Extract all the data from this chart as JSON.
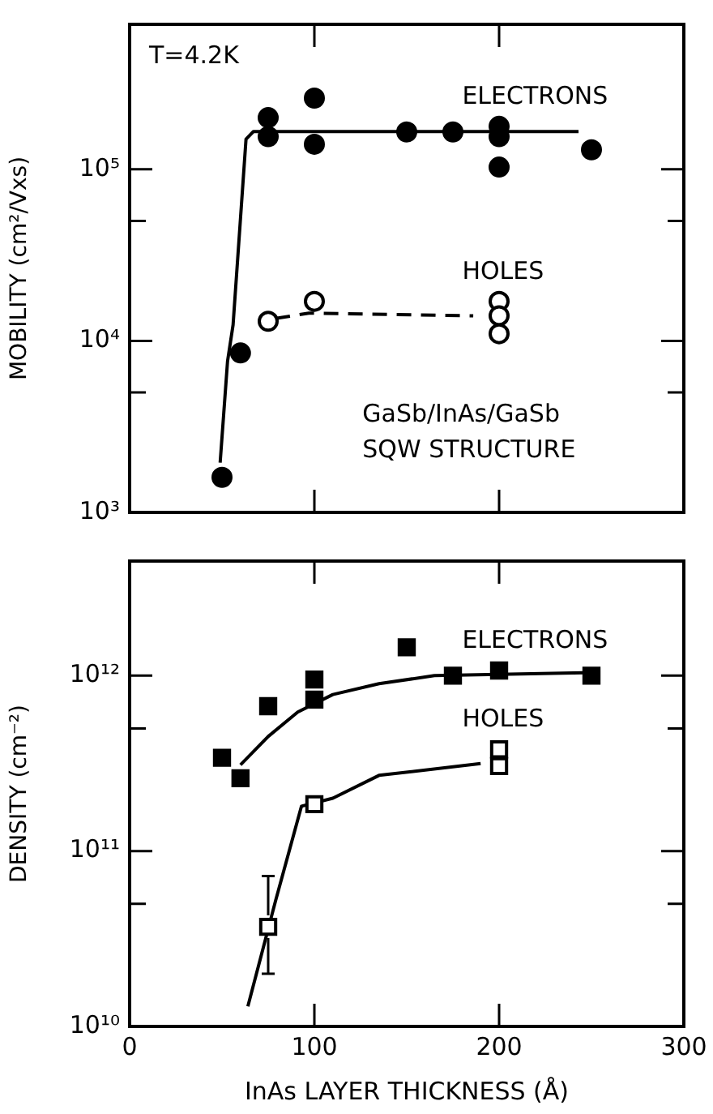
{
  "chart_data": [
    {
      "type": "scatter",
      "ylabel": "MOBILITY (cm²/Vxs)",
      "annotations": [
        "T=4.2K",
        "GaSb/InAs/GaSb",
        "SQW STRUCTURE"
      ],
      "xlim": [
        0,
        300
      ],
      "xticks": [
        0,
        100,
        200,
        300
      ],
      "ylim": [
        1000,
        700000
      ],
      "yticks": [
        {
          "value": 1000,
          "label": "10³"
        },
        {
          "value": 5000,
          "label": null
        },
        {
          "value": 10000,
          "label": "10⁴"
        },
        {
          "value": 50000,
          "label": null
        },
        {
          "value": 100000,
          "label": "10⁵"
        }
      ],
      "log": "y",
      "tick_labels": "y",
      "grid": false,
      "legend": false,
      "series": [
        {
          "name": "ELECTRONS",
          "marker": "circle",
          "color": "#000000",
          "x": [
            50,
            60,
            75,
            75,
            100,
            100,
            150,
            175,
            200,
            200,
            200,
            250
          ],
          "values": [
            1600,
            8500,
            200000,
            155000,
            260000,
            140000,
            165000,
            165000,
            178000,
            155000,
            103000,
            130000
          ]
        },
        {
          "name": "HOLES",
          "marker": "circle",
          "color": "#ffffff",
          "x": [
            75,
            100,
            200,
            200,
            200
          ],
          "values": [
            13000,
            17000,
            17000,
            14000,
            11000
          ]
        },
        {
          "type": "line",
          "marker": "none",
          "line_style": "solid",
          "color": "#000000",
          "x": [
            49,
            53,
            56,
            63,
            67,
            243
          ],
          "values": [
            1950,
            7600,
            12400,
            150000,
            166000,
            166000
          ]
        },
        {
          "type": "line",
          "marker": "none",
          "line_style": "dashed",
          "color": "#000000",
          "x": [
            79,
            97,
            186
          ],
          "values": [
            13500,
            14500,
            14000
          ]
        }
      ]
    },
    {
      "type": "scatter",
      "xlabel": "InAs LAYER THICKNESS (Å)",
      "ylabel": "DENSITY (cm⁻²)",
      "xlim": [
        0,
        300
      ],
      "xticks": [
        0,
        100,
        200,
        300
      ],
      "ylim": [
        10000000000.0,
        4500000000000.0
      ],
      "yticks": [
        {
          "value": 10000000000.0,
          "label": "10¹⁰"
        },
        {
          "value": 50000000000.0,
          "label": null
        },
        {
          "value": 100000000000.0,
          "label": "10¹¹"
        },
        {
          "value": 500000000000.0,
          "label": null
        },
        {
          "value": 1000000000000.0,
          "label": "10¹²"
        }
      ],
      "log": "y",
      "grid": false,
      "legend": false,
      "series": [
        {
          "name": "ELECTRONS",
          "marker": "square",
          "color": "#000000",
          "x": [
            50,
            60,
            75,
            100,
            100,
            150,
            175,
            200,
            250
          ],
          "values": [
            340000000000.0,
            260000000000.0,
            670000000000.0,
            950000000000.0,
            730000000000.0,
            1450000000000.0,
            1000000000000.0,
            1070000000000.0,
            1000000000000.0
          ]
        },
        {
          "name": "HOLES",
          "marker": "square",
          "color": "#ffffff",
          "x": [
            75,
            100,
            200,
            200
          ],
          "values": [
            37000000000.0,
            185000000000.0,
            380000000000.0,
            305000000000.0
          ],
          "errors": [
            [
              20000000000.0,
              72000000000.0
            ],
            null,
            null,
            null
          ]
        },
        {
          "type": "line",
          "marker": "none",
          "line_style": "solid",
          "color": "#000000",
          "x": [
            60,
            75,
            91,
            110,
            135,
            165,
            246
          ],
          "values": [
            310000000000.0,
            450000000000.0,
            620000000000.0,
            780000000000.0,
            900000000000.0,
            1000000000000.0,
            1040000000000.0
          ]
        },
        {
          "type": "line",
          "marker": "none",
          "line_style": "solid",
          "color": "#000000",
          "x": [
            64,
            79,
            93,
            110,
            135,
            190
          ],
          "values": [
            13000000000.0,
            52000000000.0,
            180000000000.0,
            200000000000.0,
            270000000000.0,
            315000000000.0
          ]
        }
      ]
    }
  ]
}
